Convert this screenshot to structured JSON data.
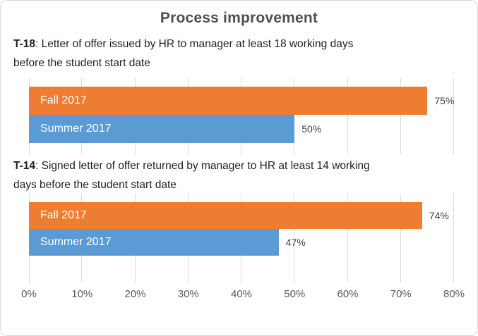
{
  "title": "Process improvement",
  "sections": [
    {
      "heading_bold": "T-18",
      "heading_line1_rest": ": Letter of offer issued by HR to manager at least 18 working days",
      "heading_line2": "before the student start date"
    },
    {
      "heading_bold": "T-14",
      "heading_line1_rest": ": Signed letter of offer returned by manager to HR at least 14 working",
      "heading_line2": "days before the student start date"
    }
  ],
  "chart_data": [
    {
      "type": "bar",
      "orientation": "horizontal",
      "title": "T-18: Letter of offer issued by HR to manager at least 18 working days before the student start date",
      "categories": [
        "Fall 2017",
        "Summer 2017"
      ],
      "values": [
        75,
        50
      ],
      "value_labels": [
        "75%",
        "50%"
      ],
      "colors": [
        "#ED7D31",
        "#5B9BD5"
      ],
      "xlim": [
        0,
        80
      ],
      "x_ticks": [
        "0%",
        "10%",
        "20%",
        "30%",
        "40%",
        "50%",
        "60%",
        "70%",
        "80%"
      ],
      "grid": true,
      "legend": "none",
      "bar_label_position": "inside-left",
      "value_label_position": "outside-end"
    },
    {
      "type": "bar",
      "orientation": "horizontal",
      "title": "T-14: Signed letter of offer returned by manager to HR at least 14 working days before the student start date",
      "categories": [
        "Fall 2017",
        "Summer 2017"
      ],
      "values": [
        74,
        47
      ],
      "value_labels": [
        "74%",
        "47%"
      ],
      "colors": [
        "#ED7D31",
        "#5B9BD5"
      ],
      "xlim": [
        0,
        80
      ],
      "x_ticks": [
        "0%",
        "10%",
        "20%",
        "30%",
        "40%",
        "50%",
        "60%",
        "70%",
        "80%"
      ],
      "grid": true,
      "legend": "none",
      "bar_label_position": "inside-left",
      "value_label_position": "outside-end"
    }
  ],
  "colors": {
    "fall_2017": "#ED7D31",
    "summer_2017": "#5B9BD5",
    "gridline": "#D9D9D9",
    "axis_text": "#595959",
    "value_text": "#404040",
    "title_text": "#4F4F4F",
    "heading_text": "#1F1F1F",
    "frame_border": "#D9D9D9"
  }
}
